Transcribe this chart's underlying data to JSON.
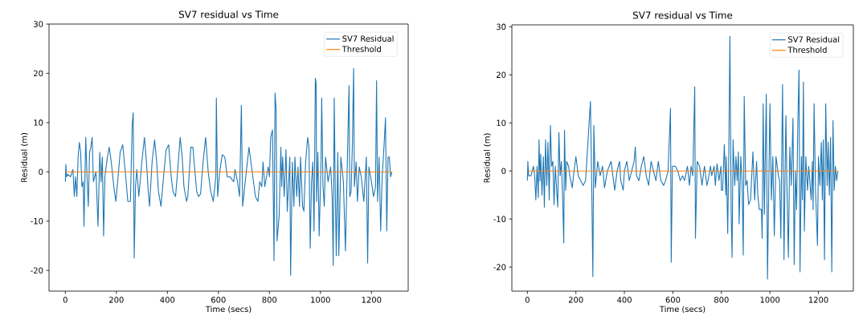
{
  "chart_data": [
    {
      "type": "line",
      "title": "SV7 residual vs Time",
      "xlabel": "Time (secs)",
      "ylabel": "Residual (m)",
      "xlim": [
        -64,
        1344
      ],
      "ylim": [
        -24.2,
        30
      ],
      "xticks": [
        0,
        200,
        400,
        600,
        800,
        1000,
        1200
      ],
      "yticks": [
        -20,
        -10,
        0,
        10,
        20,
        30
      ],
      "legend": "top right",
      "grid": false,
      "marker": "none",
      "line_style": "solid",
      "series": [
        {
          "name": "SV7 Residual",
          "color": "#1f77b4",
          "x": [
            0,
            2,
            5,
            10,
            20,
            30,
            35,
            40,
            45,
            50,
            55,
            60,
            65,
            70,
            73,
            80,
            85,
            90,
            95,
            100,
            105,
            110,
            115,
            120,
            128,
            135,
            140,
            145,
            150,
            155,
            165,
            172,
            180,
            190,
            198,
            205,
            215,
            225,
            235,
            245,
            255,
            262,
            266,
            270,
            275,
            280,
            288,
            300,
            310,
            318,
            325,
            330,
            340,
            350,
            358,
            365,
            375,
            385,
            395,
            405,
            415,
            422,
            432,
            440,
            450,
            458,
            465,
            475,
            480,
            492,
            500,
            508,
            515,
            522,
            530,
            540,
            550,
            560,
            570,
            580,
            590,
            592,
            597,
            605,
            615,
            625,
            635,
            645,
            660,
            665,
            675,
            683,
            690,
            695,
            705,
            720,
            735,
            745,
            755,
            762,
            770,
            775,
            782,
            795,
            800,
            805,
            812,
            818,
            822,
            826,
            830,
            838,
            845,
            848,
            852,
            858,
            865,
            870,
            880,
            883,
            890,
            896,
            900,
            907,
            912,
            918,
            922,
            930,
            935,
            942,
            950,
            955,
            960,
            965,
            970,
            975,
            980,
            983,
            985,
            990,
            995,
            1002,
            1005,
            1010,
            1015,
            1020,
            1030,
            1040,
            1046,
            1050,
            1054,
            1058,
            1062,
            1068,
            1072,
            1080,
            1090,
            1098,
            1105,
            1112,
            1115,
            1120,
            1125,
            1130,
            1133,
            1140,
            1145,
            1152,
            1160,
            1170,
            1180,
            1185,
            1190,
            1200,
            1208,
            1216,
            1220,
            1224,
            1230,
            1236,
            1242,
            1250,
            1255,
            1260,
            1265,
            1270,
            1275,
            1280
          ],
          "values": [
            -2,
            1.5,
            -1,
            -0.5,
            -1,
            0.5,
            -5,
            -1,
            -5,
            3,
            6,
            4,
            -3,
            -2,
            -11,
            7,
            -1,
            -7,
            4,
            5,
            7,
            -2,
            -1,
            0,
            -11,
            4,
            -2,
            3,
            -13,
            -1,
            3,
            5,
            2,
            -3,
            -6,
            -2,
            4,
            5.5,
            0,
            -6,
            -6,
            9.5,
            12,
            -17.5,
            -3,
            0.5,
            -5,
            2,
            7,
            2,
            -4,
            -7,
            2,
            6.5,
            2,
            -4,
            -7,
            -1,
            4.5,
            5.5,
            -1,
            -4,
            -5,
            0,
            7,
            3,
            -3,
            -6,
            -5,
            5,
            5,
            0,
            -4,
            -5,
            -4.5,
            2,
            7,
            0,
            -4,
            -6,
            -1,
            15,
            -5,
            0,
            3.5,
            3,
            -1,
            -1,
            -2,
            0.5,
            -2,
            -5,
            13.5,
            -7,
            -2,
            5,
            -1,
            -5,
            -6,
            -2,
            -3,
            2,
            -3,
            1,
            -1,
            7,
            8.5,
            -18,
            16,
            13,
            -14,
            -9,
            5,
            -3,
            3,
            -5,
            4.5,
            -8,
            3,
            -21,
            2,
            -7,
            3,
            -5,
            1,
            -7,
            3,
            -7,
            -8,
            2,
            7,
            5,
            -15.5,
            -2,
            2,
            -12,
            19,
            18,
            -6,
            4,
            -13,
            1,
            15,
            -3,
            -7,
            3,
            -2,
            1,
            -5,
            -19,
            15,
            -3,
            -17,
            4,
            -17,
            3,
            -2,
            -16,
            1,
            17.5,
            -5,
            -4,
            5,
            21,
            -3,
            2,
            -6,
            1,
            -1,
            -6,
            3,
            -18.5,
            1,
            -2,
            -5,
            -3,
            18.5,
            -6,
            3,
            -12,
            -1,
            6,
            11,
            -12,
            3,
            3,
            -1,
            0
          ]
        },
        {
          "name": "Threshold",
          "color": "#ff7f0e",
          "x": [
            0,
            1280
          ],
          "values": [
            0,
            0
          ]
        }
      ]
    },
    {
      "type": "line",
      "title": "SV7 residual vs Time",
      "xlabel": "Time (secs)",
      "ylabel": "Residual (m)",
      "xlim": [
        -64,
        1344
      ],
      "ylim": [
        -25,
        30.4
      ],
      "xticks": [
        0,
        200,
        400,
        600,
        800,
        1000,
        1200
      ],
      "yticks": [
        -20,
        -10,
        0,
        10,
        20,
        30
      ],
      "legend": "top right",
      "grid": false,
      "marker": "none",
      "line_style": "solid",
      "series": [
        {
          "name": "SV7 Residual",
          "color": "#1f77b4",
          "x": [
            0,
            2,
            5,
            15,
            25,
            30,
            35,
            40,
            45,
            48,
            52,
            55,
            60,
            66,
            70,
            75,
            80,
            85,
            90,
            95,
            100,
            105,
            110,
            115,
            125,
            130,
            135,
            140,
            145,
            150,
            153,
            158,
            162,
            170,
            175,
            185,
            190,
            200,
            210,
            220,
            230,
            240,
            260,
            265,
            270,
            274,
            280,
            290,
            300,
            310,
            318,
            330,
            345,
            360,
            370,
            380,
            385,
            395,
            400,
            410,
            420,
            440,
            445,
            450,
            460,
            470,
            480,
            490,
            500,
            510,
            520,
            530,
            540,
            550,
            562,
            570,
            580,
            590,
            593,
            598,
            610,
            620,
            630,
            640,
            648,
            660,
            668,
            675,
            682,
            690,
            693,
            700,
            710,
            720,
            730,
            740,
            745,
            755,
            760,
            770,
            775,
            782,
            790,
            798,
            800,
            805,
            812,
            818,
            820,
            826,
            830,
            835,
            840,
            844,
            848,
            855,
            860,
            865,
            870,
            873,
            880,
            885,
            890,
            894,
            900,
            906,
            912,
            920,
            930,
            937,
            945,
            950,
            956,
            965,
            968,
            972,
            977,
            985,
            990,
            994,
            1000,
            1006,
            1012,
            1018,
            1025,
            1035,
            1040,
            1045,
            1052,
            1058,
            1062,
            1066,
            1070,
            1076,
            1082,
            1088,
            1095,
            1100,
            1105,
            1110,
            1115,
            1120,
            1124,
            1130,
            1134,
            1138,
            1142,
            1148,
            1155,
            1160,
            1170,
            1175,
            1178,
            1182,
            1188,
            1196,
            1200,
            1206,
            1212,
            1216,
            1220,
            1225,
            1230,
            1236,
            1240,
            1245,
            1250,
            1255,
            1260,
            1265,
            1270,
            1275,
            1280
          ],
          "values": [
            -2,
            2,
            -1,
            -1,
            1,
            -1,
            -6,
            1,
            -5.5,
            6.5,
            -2,
            3.5,
            -5,
            3,
            -7.5,
            6.5,
            -3,
            6,
            -6,
            9.5,
            1,
            2,
            -7,
            1,
            -7.5,
            8,
            -1,
            2,
            -5,
            -15,
            8.5,
            -4,
            2,
            1,
            -1,
            -3.5,
            -1,
            3,
            -1,
            -2,
            -3,
            -2,
            14.5,
            -2,
            -22,
            9.5,
            -3.5,
            2,
            -1,
            1,
            -3.5,
            0,
            2,
            -4,
            0,
            2,
            -2,
            -4,
            0,
            2,
            -2,
            2,
            5,
            -1,
            -2,
            1,
            3,
            -1,
            -3,
            2,
            0,
            -2,
            2,
            -2,
            -3,
            -2,
            0,
            13,
            -19,
            1,
            1,
            0,
            -2,
            -1,
            -2,
            1,
            -3,
            1,
            -1,
            17.5,
            -14,
            2,
            1,
            -3,
            1,
            -3,
            -2,
            1,
            -1,
            1,
            -3,
            1.5,
            -2,
            1,
            -4,
            -4,
            5.5,
            -5,
            3,
            -13,
            2,
            28,
            -8,
            -18,
            6.5,
            -3,
            3,
            -2,
            4,
            -11,
            3,
            -2,
            -17.5,
            15.5,
            -3,
            -2,
            -7,
            -6,
            4,
            -6,
            2,
            -5,
            -8,
            -8,
            -14,
            14,
            -9,
            16,
            -22.5,
            -8,
            14,
            -6,
            3,
            -13.5,
            3,
            -1,
            -2,
            -14,
            18,
            -18.5,
            -2,
            11.5,
            -3,
            -18,
            5,
            -3,
            11,
            -19.5,
            0,
            -8,
            10,
            21,
            -21,
            3,
            -6,
            18.5,
            -12.5,
            3,
            -4,
            1,
            -6,
            2,
            -8,
            14,
            -4,
            -15.5,
            3,
            -3,
            6,
            -6,
            6.5,
            -18.5,
            14,
            -3,
            6,
            -5,
            7,
            -21,
            10.5,
            -4,
            1,
            -2,
            0
          ]
        },
        {
          "name": "Threshold",
          "color": "#ff7f0e",
          "x": [
            0,
            1280
          ],
          "values": [
            0,
            0
          ]
        }
      ]
    }
  ]
}
